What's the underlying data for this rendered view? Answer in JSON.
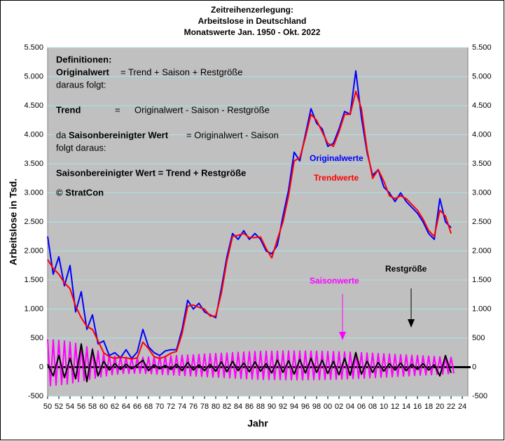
{
  "chart_data": {
    "type": "line",
    "title": [
      "Zeitreihenzerlegung:",
      "Arbeitslose in Deutschland",
      "Monatswerte Jan. 1950 - Okt. 2022"
    ],
    "xlabel": "Jahr",
    "ylabel": "Arbeitslose in Tsd.",
    "annotations": {
      "head": "Definitionen:",
      "orig": "Originalwert",
      "origdef": "= Trend + Saison + Restgröße",
      "folgt1": "daraus folgt:",
      "trend": "Trend",
      "eq": "=",
      "trenddef": "Originalwert - Saison - Restgröße",
      "da": "da",
      "sbw": "Saisonbereinigter Wert",
      "sbwdef": "=  Originalwert - Saison",
      "folgt2": "folgt daraus:",
      "result": "Saisonbereinigter Wert = Trend + Restgröße",
      "copy": "© StratCon"
    },
    "xlim": [
      1950,
      2025
    ],
    "ylim": [
      -500,
      5500
    ],
    "xticks": [
      {
        "value": 1950,
        "label": "50"
      },
      {
        "value": 1952,
        "label": "52"
      },
      {
        "value": 1954,
        "label": "54"
      },
      {
        "value": 1956,
        "label": "56"
      },
      {
        "value": 1958,
        "label": "58"
      },
      {
        "value": 1960,
        "label": "60"
      },
      {
        "value": 1962,
        "label": "62"
      },
      {
        "value": 1964,
        "label": "64"
      },
      {
        "value": 1966,
        "label": "66"
      },
      {
        "value": 1968,
        "label": "68"
      },
      {
        "value": 1970,
        "label": "70"
      },
      {
        "value": 1972,
        "label": "72"
      },
      {
        "value": 1974,
        "label": "74"
      },
      {
        "value": 1976,
        "label": "76"
      },
      {
        "value": 1978,
        "label": "78"
      },
      {
        "value": 1980,
        "label": "80"
      },
      {
        "value": 1982,
        "label": "82"
      },
      {
        "value": 1984,
        "label": "84"
      },
      {
        "value": 1986,
        "label": "86"
      },
      {
        "value": 1988,
        "label": "88"
      },
      {
        "value": 1990,
        "label": "90"
      },
      {
        "value": 1992,
        "label": "92"
      },
      {
        "value": 1994,
        "label": "94"
      },
      {
        "value": 1996,
        "label": "96"
      },
      {
        "value": 1998,
        "label": "98"
      },
      {
        "value": 2000,
        "label": "00"
      },
      {
        "value": 2002,
        "label": "02"
      },
      {
        "value": 2004,
        "label": "04"
      },
      {
        "value": 2006,
        "label": "06"
      },
      {
        "value": 2008,
        "label": "08"
      },
      {
        "value": 2010,
        "label": "10"
      },
      {
        "value": 2012,
        "label": "12"
      },
      {
        "value": 2014,
        "label": "14"
      },
      {
        "value": 2016,
        "label": "16"
      },
      {
        "value": 2018,
        "label": "18"
      },
      {
        "value": 2020,
        "label": "20"
      },
      {
        "value": 2022,
        "label": "22"
      },
      {
        "value": 2024,
        "label": "24"
      }
    ],
    "yticks": [
      {
        "value": -500,
        "label": "-500"
      },
      0,
      500,
      {
        "value": 1000,
        "label": "1.000"
      },
      {
        "value": 1500,
        "label": "1.500"
      },
      {
        "value": 2000,
        "label": "2.000"
      },
      {
        "value": 2500,
        "label": "2.500"
      },
      {
        "value": 3000,
        "label": "3.000"
      },
      {
        "value": 3500,
        "label": "3.500"
      },
      {
        "value": 4000,
        "label": "4.000"
      },
      {
        "value": 4500,
        "label": "4.500"
      },
      {
        "value": 5000,
        "label": "5.000"
      },
      {
        "value": 5500,
        "label": "5.500"
      }
    ],
    "grid": true,
    "series": [
      {
        "name": "Saisonwerte",
        "color": "#ff00ff",
        "x": [
          1950,
          1950.5,
          1951,
          1951.5,
          1952,
          1952.5,
          1953,
          1953.5,
          1954,
          1954.5,
          1955,
          1955.5,
          1956,
          1956.5,
          1957,
          1957.5,
          1958,
          1958.5,
          1959,
          1959.5,
          1960,
          1960.5,
          1961,
          1961.5,
          1962,
          1962.5,
          1963,
          1963.5,
          1964,
          1964.5,
          1965,
          1965.5,
          1966,
          1966.5,
          1967,
          1967.5,
          1968,
          1968.5,
          1969,
          1969.5,
          1970,
          1970.5,
          1971,
          1971.5,
          1972,
          1972.5,
          1973,
          1973.5,
          1974,
          1974.5,
          1975,
          1975.5,
          1976,
          1976.5,
          1977,
          1977.5,
          1978,
          1978.5,
          1979,
          1979.5,
          1980,
          1980.5,
          1981,
          1981.5,
          1982,
          1982.5,
          1983,
          1983.5,
          1984,
          1984.5,
          1985,
          1985.5,
          1986,
          1986.5,
          1987,
          1987.5,
          1988,
          1988.5,
          1989,
          1989.5,
          1990,
          1990.5,
          1991,
          1991.5,
          1992,
          1992.5,
          1993,
          1993.5,
          1994,
          1994.5,
          1995,
          1995.5,
          1996,
          1996.5,
          1997,
          1997.5,
          1998,
          1998.5,
          1999,
          1999.5,
          2000,
          2000.5,
          2001,
          2001.5,
          2002,
          2002.5,
          2003,
          2003.5,
          2004,
          2004.5,
          2005,
          2005.5,
          2006,
          2006.5,
          2007,
          2007.5,
          2008,
          2008.5,
          2009,
          2009.5,
          2010,
          2010.5,
          2011,
          2011.5,
          2012,
          2012.5,
          2013,
          2013.5,
          2014,
          2014.5,
          2015,
          2015.5,
          2016,
          2016.5,
          2017,
          2017.5,
          2018,
          2018.5,
          2019,
          2019.5,
          2020,
          2020.5,
          2021,
          2021.5,
          2022,
          2022.5
        ],
        "values": [
          480,
          -320,
          470,
          -310,
          460,
          -300,
          450,
          -290,
          430,
          -270,
          410,
          -250,
          380,
          -230,
          350,
          -210,
          320,
          -190,
          280,
          -170,
          240,
          -150,
          210,
          -130,
          190,
          -120,
          180,
          -110,
          170,
          -110,
          165,
          -105,
          165,
          -105,
          170,
          -110,
          175,
          -115,
          180,
          -120,
          185,
          -125,
          190,
          -130,
          195,
          -135,
          200,
          -140,
          205,
          -145,
          210,
          -150,
          215,
          -155,
          220,
          -160,
          225,
          -165,
          230,
          -170,
          235,
          -175,
          240,
          -180,
          245,
          -185,
          250,
          -190,
          255,
          -195,
          260,
          -200,
          265,
          -205,
          270,
          -210,
          272,
          -212,
          274,
          -214,
          275,
          -215,
          276,
          -216,
          277,
          -217,
          278,
          -218,
          278,
          -218,
          278,
          -218,
          277,
          -217,
          276,
          -216,
          275,
          -215,
          273,
          -213,
          270,
          -210,
          268,
          -208,
          265,
          -205,
          262,
          -202,
          258,
          -198,
          255,
          -195,
          250,
          -190,
          245,
          -185,
          240,
          -180,
          235,
          -175,
          230,
          -170,
          225,
          -165,
          220,
          -160,
          215,
          -155,
          210,
          -150,
          205,
          -145,
          200,
          -140,
          195,
          -135,
          190,
          -130,
          185,
          -125,
          180,
          -120,
          175,
          -115,
          170,
          -110
        ]
      },
      {
        "name": "Restgröße",
        "color": "#000000",
        "x": [
          1950,
          1951,
          1952,
          1953,
          1954,
          1955,
          1956,
          1957,
          1958,
          1959,
          1960,
          1961,
          1962,
          1963,
          1964,
          1965,
          1966,
          1967,
          1968,
          1969,
          1970,
          1971,
          1972,
          1973,
          1974,
          1975,
          1976,
          1977,
          1978,
          1979,
          1980,
          1981,
          1982,
          1983,
          1984,
          1985,
          1986,
          1987,
          1988,
          1989,
          1990,
          1991,
          1992,
          1993,
          1994,
          1995,
          1996,
          1997,
          1998,
          1999,
          2000,
          2001,
          2002,
          2003,
          2004,
          2005,
          2006,
          2007,
          2008,
          2009,
          2010,
          2011,
          2012,
          2013,
          2014,
          2015,
          2016,
          2017,
          2018,
          2019,
          2020,
          2021,
          2022
        ],
        "values": [
          50,
          -150,
          200,
          -180,
          150,
          -200,
          400,
          -250,
          300,
          -150,
          100,
          -50,
          60,
          -40,
          50,
          -30,
          40,
          120,
          -60,
          40,
          -30,
          30,
          -40,
          50,
          -60,
          80,
          -50,
          40,
          -60,
          50,
          -70,
          90,
          -80,
          100,
          -60,
          70,
          -80,
          90,
          -70,
          60,
          -100,
          120,
          -90,
          110,
          -120,
          130,
          -100,
          150,
          -90,
          120,
          -110,
          100,
          -130,
          150,
          -140,
          250,
          -120,
          100,
          -90,
          80,
          -70,
          60,
          -50,
          70,
          -60,
          50,
          -40,
          60,
          -50,
          40,
          -150,
          200,
          -100
        ]
      },
      {
        "name": "Originalwerte",
        "color": "#0000ff",
        "x": [
          1950,
          1951,
          1952,
          1953,
          1954,
          1955,
          1956,
          1957,
          1958,
          1959,
          1960,
          1961,
          1962,
          1963,
          1964,
          1965,
          1966,
          1967,
          1968,
          1969,
          1970,
          1971,
          1972,
          1973,
          1974,
          1975,
          1976,
          1977,
          1978,
          1979,
          1980,
          1981,
          1982,
          1983,
          1984,
          1985,
          1986,
          1987,
          1988,
          1989,
          1990,
          1991,
          1992,
          1993,
          1994,
          1995,
          1996,
          1997,
          1998,
          1999,
          2000,
          2001,
          2002,
          2003,
          2004,
          2005,
          2006,
          2007,
          2008,
          2009,
          2010,
          2011,
          2012,
          2013,
          2014,
          2015,
          2016,
          2017,
          2018,
          2019,
          2020,
          2021,
          2022
        ],
        "values": [
          2250,
          1600,
          1900,
          1400,
          1750,
          950,
          1300,
          650,
          900,
          400,
          450,
          200,
          250,
          160,
          300,
          150,
          260,
          650,
          350,
          250,
          200,
          280,
          300,
          300,
          650,
          1150,
          1000,
          1100,
          950,
          900,
          850,
          1350,
          1900,
          2300,
          2200,
          2350,
          2200,
          2300,
          2200,
          2000,
          1950,
          2100,
          2600,
          3050,
          3700,
          3550,
          4000,
          4450,
          4200,
          4100,
          3800,
          3850,
          4100,
          4400,
          4350,
          5100,
          4300,
          3700,
          3300,
          3400,
          3100,
          3000,
          2850,
          3000,
          2850,
          2750,
          2650,
          2500,
          2300,
          2200,
          2900,
          2500,
          2400
        ]
      },
      {
        "name": "Trendwerte",
        "color": "#ff0000",
        "x": [
          1950,
          1951,
          1952,
          1953,
          1954,
          1955,
          1956,
          1957,
          1958,
          1959,
          1960,
          1961,
          1962,
          1963,
          1964,
          1965,
          1966,
          1967,
          1968,
          1969,
          1970,
          1971,
          1972,
          1973,
          1974,
          1975,
          1976,
          1977,
          1978,
          1979,
          1980,
          1981,
          1982,
          1983,
          1984,
          1985,
          1986,
          1987,
          1988,
          1989,
          1990,
          1991,
          1992,
          1993,
          1994,
          1995,
          1996,
          1997,
          1998,
          1999,
          2000,
          2001,
          2002,
          2003,
          2004,
          2005,
          2006,
          2007,
          2008,
          2009,
          2010,
          2011,
          2012,
          2013,
          2014,
          2015,
          2016,
          2017,
          2018,
          2019,
          2020,
          2021,
          2022
        ],
        "values": [
          1850,
          1700,
          1600,
          1450,
          1350,
          1050,
          850,
          700,
          650,
          450,
          250,
          180,
          150,
          170,
          160,
          140,
          160,
          430,
          320,
          180,
          150,
          180,
          240,
          270,
          580,
          1050,
          1070,
          1030,
          1000,
          880,
          880,
          1270,
          1830,
          2250,
          2270,
          2300,
          2230,
          2230,
          2240,
          2040,
          1880,
          2200,
          2500,
          2950,
          3550,
          3600,
          3950,
          4350,
          4250,
          4050,
          3850,
          3800,
          4050,
          4350,
          4350,
          4750,
          4450,
          3750,
          3250,
          3400,
          3200,
          2950,
          2900,
          2950,
          2900,
          2800,
          2700,
          2550,
          2350,
          2250,
          2700,
          2600,
          2300
        ]
      }
    ]
  }
}
